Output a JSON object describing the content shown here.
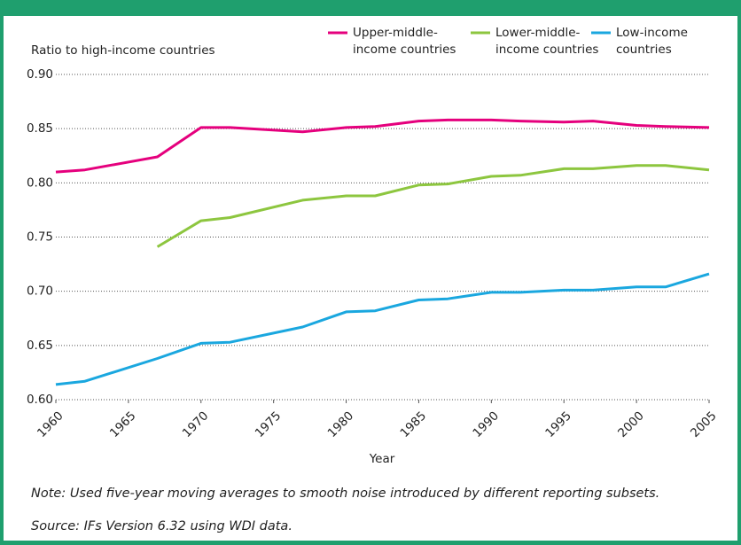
{
  "chart_data": {
    "type": "line",
    "y_label": "Ratio to high-income countries",
    "x_label": "Year",
    "x": [
      1960,
      1962,
      1967,
      1970,
      1972,
      1977,
      1980,
      1982,
      1985,
      1987,
      1990,
      1992,
      1995,
      1997,
      2000,
      2002,
      2005
    ],
    "series": [
      {
        "name": "Upper-middle-\nincome countries",
        "color": "#e5007d",
        "values": [
          0.81,
          0.812,
          0.824,
          0.851,
          0.851,
          0.847,
          0.851,
          0.852,
          0.857,
          0.858,
          0.858,
          0.857,
          0.856,
          0.857,
          0.853,
          0.852,
          0.851
        ]
      },
      {
        "name": "Lower-middle-\nincome countries",
        "color": "#8dc63f",
        "values": [
          null,
          null,
          0.741,
          0.765,
          0.768,
          0.784,
          0.788,
          0.788,
          0.798,
          0.799,
          0.806,
          0.807,
          0.813,
          0.813,
          0.816,
          0.816,
          0.812
        ]
      },
      {
        "name": "Low-income\ncountries",
        "color": "#1aa7df",
        "values": [
          0.614,
          0.617,
          0.638,
          0.652,
          0.653,
          0.667,
          0.681,
          0.682,
          0.692,
          0.693,
          0.699,
          0.699,
          0.701,
          0.701,
          0.704,
          0.704,
          0.716
        ]
      }
    ],
    "xlim": [
      1960,
      2005
    ],
    "xticks": [
      1960,
      1965,
      1970,
      1975,
      1980,
      1985,
      1990,
      1995,
      2000,
      2005
    ],
    "ylim": [
      0.6,
      0.9
    ],
    "yticks": [
      {
        "value": 0.6,
        "label": "0.60"
      },
      {
        "value": 0.65,
        "label": "0.65"
      },
      {
        "value": 0.7,
        "label": "0.70"
      },
      {
        "value": 0.75,
        "label": "0.75"
      },
      {
        "value": 0.8,
        "label": "0.80"
      },
      {
        "value": 0.85,
        "label": "0.85"
      },
      {
        "value": 0.9,
        "label": "0.90"
      }
    ],
    "grid": true,
    "notes": [
      "Note: Used five-year moving averages to smooth noise introduced by different reporting subsets.",
      "Source: IFs Version 6.32 using WDI data."
    ]
  }
}
